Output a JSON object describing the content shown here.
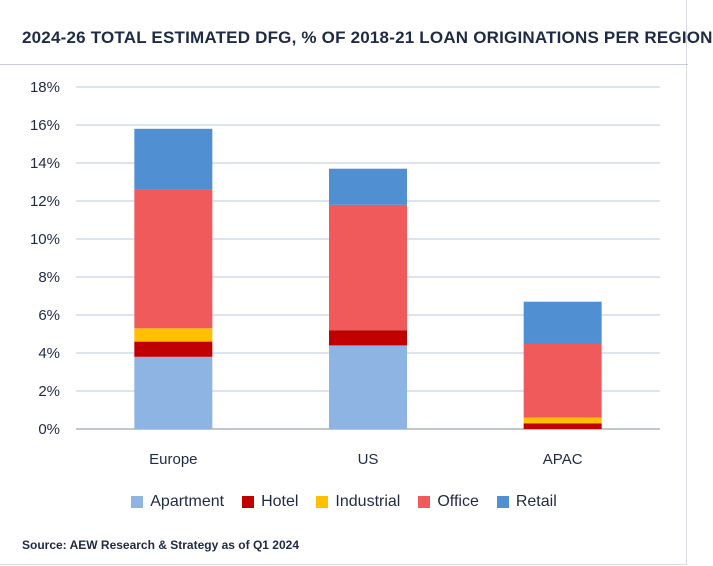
{
  "title": "2024-26 TOTAL ESTIMATED DFG, % OF 2018-21 LOAN ORIGINATIONS PER REGION",
  "source": "Source: AEW Research & Strategy as of Q1 2024",
  "chart_data": {
    "type": "bar",
    "stacked": true,
    "categories": [
      "Europe",
      "US",
      "APAC"
    ],
    "series": [
      {
        "name": "Apartment",
        "color": "#8db4e2",
        "values": [
          3.8,
          4.4,
          0.0
        ]
      },
      {
        "name": "Hotel",
        "color": "#c00000",
        "values": [
          0.8,
          0.8,
          0.3
        ]
      },
      {
        "name": "Industrial",
        "color": "#ffc000",
        "values": [
          0.7,
          0.0,
          0.3
        ]
      },
      {
        "name": "Office",
        "color": "#f05a5a",
        "values": [
          7.3,
          6.6,
          3.9
        ]
      },
      {
        "name": "Retail",
        "color": "#4f8fd2",
        "values": [
          3.2,
          1.9,
          2.2
        ]
      }
    ],
    "ylim": [
      0,
      18
    ],
    "yticks": [
      0,
      2,
      4,
      6,
      8,
      10,
      12,
      14,
      16,
      18
    ],
    "ytick_labels": [
      "0%",
      "2%",
      "4%",
      "6%",
      "8%",
      "10%",
      "12%",
      "14%",
      "16%",
      "18%"
    ],
    "grid": true,
    "legend_position": "bottom"
  }
}
